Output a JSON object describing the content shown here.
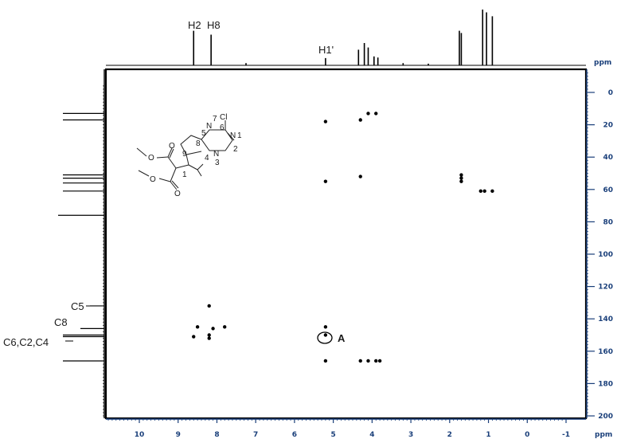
{
  "chart_data": {
    "type": "scatter",
    "title": "",
    "xlabel": "ppm",
    "ylabel": "ppm",
    "xlim": [
      11,
      -1.2
    ],
    "ylim": [
      200,
      0
    ],
    "x_ticks": [
      10,
      9,
      8,
      7,
      6,
      5,
      4,
      3,
      2,
      1,
      0,
      -1
    ],
    "y_ticks": [
      0,
      20,
      40,
      60,
      80,
      100,
      120,
      140,
      160,
      180,
      200
    ],
    "grid": false,
    "series": [
      {
        "name": "",
        "points": [
          {
            "x": 5.2,
            "y": 18
          },
          {
            "x": 4.3,
            "y": 17
          },
          {
            "x": 4.1,
            "y": 13
          },
          {
            "x": 3.9,
            "y": 13
          },
          {
            "x": 5.2,
            "y": 55
          },
          {
            "x": 4.3,
            "y": 52
          },
          {
            "x": 1.7,
            "y": 51
          },
          {
            "x": 1.7,
            "y": 53
          },
          {
            "x": 1.7,
            "y": 55
          },
          {
            "x": 1.2,
            "y": 61
          },
          {
            "x": 1.1,
            "y": 61
          },
          {
            "x": 0.9,
            "y": 61
          },
          {
            "x": 8.2,
            "y": 132
          },
          {
            "x": 8.5,
            "y": 145
          },
          {
            "x": 8.1,
            "y": 146
          },
          {
            "x": 7.8,
            "y": 145
          },
          {
            "x": 8.6,
            "y": 151
          },
          {
            "x": 8.2,
            "y": 150
          },
          {
            "x": 8.2,
            "y": 152
          },
          {
            "x": 5.2,
            "y": 145
          },
          {
            "x": 5.2,
            "y": 150
          },
          {
            "x": 5.2,
            "y": 166
          },
          {
            "x": 4.3,
            "y": 166
          },
          {
            "x": 4.1,
            "y": 166
          },
          {
            "x": 3.9,
            "y": 166
          },
          {
            "x": 3.8,
            "y": 166
          }
        ]
      }
    ],
    "projection_1h": [
      {
        "x": 8.6,
        "h": 62
      },
      {
        "x": 8.15,
        "h": 55
      },
      {
        "x": 7.25,
        "h": 4
      },
      {
        "x": 5.2,
        "h": 13
      },
      {
        "x": 4.35,
        "h": 28
      },
      {
        "x": 4.2,
        "h": 40
      },
      {
        "x": 4.1,
        "h": 32
      },
      {
        "x": 3.95,
        "h": 16
      },
      {
        "x": 3.85,
        "h": 14
      },
      {
        "x": 3.2,
        "h": 4
      },
      {
        "x": 2.55,
        "h": 3
      },
      {
        "x": 1.75,
        "h": 62
      },
      {
        "x": 1.7,
        "h": 58
      },
      {
        "x": 1.15,
        "h": 100
      },
      {
        "x": 1.05,
        "h": 95
      },
      {
        "x": 0.9,
        "h": 88
      }
    ],
    "projection_13c": [
      {
        "y": 13,
        "h": 52
      },
      {
        "y": 17,
        "h": 52
      },
      {
        "y": 51,
        "h": 52
      },
      {
        "y": 53,
        "h": 52
      },
      {
        "y": 56,
        "h": 52
      },
      {
        "y": 61,
        "h": 52
      },
      {
        "y": 76,
        "h": 58
      },
      {
        "y": 132,
        "h": 18
      },
      {
        "y": 146,
        "h": 30
      },
      {
        "y": 150,
        "h": 52
      },
      {
        "y": 151,
        "h": 52
      },
      {
        "y": 166,
        "h": 52
      }
    ],
    "annotations": {
      "h2": "H2",
      "h8": "H8",
      "h1p": "H1'",
      "c5": "C5",
      "c8": "C8",
      "c6c2c4": "C6,C2,C4",
      "circled_label": "A"
    },
    "structure_labels": {
      "cl": "Cl",
      "n7": "N",
      "n7num": "7",
      "n1": "N",
      "n1num": "1",
      "n3": "N",
      "n3num": "3",
      "num2": "2",
      "num4": "4",
      "num5": "5",
      "num6": "6",
      "num8": "8",
      "num9": "9",
      "num1": "1",
      "o1": "O",
      "o2": "O",
      "o3": "O",
      "o4": "O"
    }
  }
}
